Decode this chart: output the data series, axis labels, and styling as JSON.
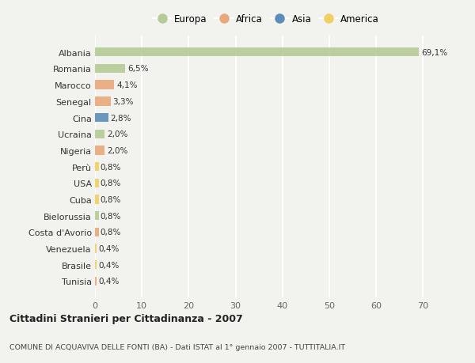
{
  "countries": [
    "Albania",
    "Romania",
    "Marocco",
    "Senegal",
    "Cina",
    "Ucraina",
    "Nigeria",
    "Perù",
    "USA",
    "Cuba",
    "Bielorussia",
    "Costa d'Avorio",
    "Venezuela",
    "Brasile",
    "Tunisia"
  ],
  "values": [
    69.1,
    6.5,
    4.1,
    3.3,
    2.8,
    2.0,
    2.0,
    0.8,
    0.8,
    0.8,
    0.8,
    0.8,
    0.4,
    0.4,
    0.4
  ],
  "labels": [
    "69,1%",
    "6,5%",
    "4,1%",
    "3,3%",
    "2,8%",
    "2,0%",
    "2,0%",
    "0,8%",
    "0,8%",
    "0,8%",
    "0,8%",
    "0,8%",
    "0,4%",
    "0,4%",
    "0,4%"
  ],
  "continents": [
    "Europa",
    "Europa",
    "Africa",
    "Africa",
    "Asia",
    "Europa",
    "Africa",
    "America",
    "America",
    "America",
    "Europa",
    "Africa",
    "America",
    "America",
    "Africa"
  ],
  "continent_colors": {
    "Europa": "#b5cc96",
    "Africa": "#e8a87c",
    "Asia": "#5b8db8",
    "America": "#f0d060"
  },
  "legend_order": [
    "Europa",
    "Africa",
    "Asia",
    "America"
  ],
  "title": "Cittadini Stranieri per Cittadinanza - 2007",
  "subtitle": "COMUNE DI ACQUAVIVA DELLE FONTI (BA) - Dati ISTAT al 1° gennaio 2007 - TUTTITALIA.IT",
  "bg_color": "#f2f2ee",
  "xlim": [
    0,
    73
  ],
  "xticks": [
    0,
    10,
    20,
    30,
    40,
    50,
    60,
    70
  ]
}
